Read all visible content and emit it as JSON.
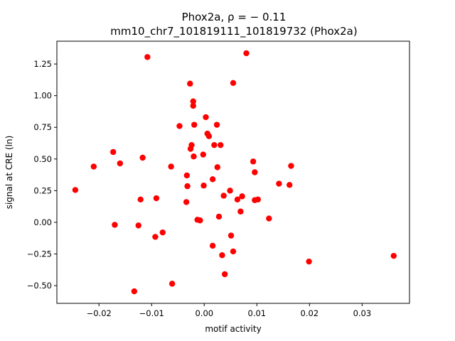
{
  "chart_data": {
    "type": "scatter",
    "title_line1": "Phox2a, ρ = − 0.11",
    "title_line2": "mm10_chr7_101819111_101819732 (Phox2a)",
    "xlabel": "motif activity",
    "ylabel": "signal at CRE (ln)",
    "xlim": [
      -0.028,
      0.039
    ],
    "ylim": [
      -0.64,
      1.43
    ],
    "grid": false,
    "marker_color": "#ff0000",
    "x_ticks": [
      {
        "value": -0.02,
        "label": "−0.02"
      },
      {
        "value": -0.01,
        "label": "−0.01"
      },
      {
        "value": 0.0,
        "label": "0.00"
      },
      {
        "value": 0.01,
        "label": "0.01"
      },
      {
        "value": 0.02,
        "label": "0.02"
      },
      {
        "value": 0.03,
        "label": "0.03"
      }
    ],
    "y_ticks": [
      {
        "value": -0.5,
        "label": "−0.50"
      },
      {
        "value": -0.25,
        "label": "−0.25"
      },
      {
        "value": 0.0,
        "label": "0.00"
      },
      {
        "value": 0.25,
        "label": "0.25"
      },
      {
        "value": 0.5,
        "label": "0.50"
      },
      {
        "value": 0.75,
        "label": "0.75"
      },
      {
        "value": 1.0,
        "label": "1.00"
      },
      {
        "value": 1.25,
        "label": "1.25"
      }
    ],
    "points": [
      {
        "x": -0.0245,
        "y": 0.255
      },
      {
        "x": -0.021,
        "y": 0.44
      },
      {
        "x": -0.0173,
        "y": 0.555
      },
      {
        "x": -0.017,
        "y": -0.02
      },
      {
        "x": -0.016,
        "y": 0.465
      },
      {
        "x": -0.0133,
        "y": -0.545
      },
      {
        "x": -0.0125,
        "y": -0.025
      },
      {
        "x": -0.0121,
        "y": 0.18
      },
      {
        "x": -0.0117,
        "y": 0.51
      },
      {
        "x": -0.0108,
        "y": 1.305
      },
      {
        "x": -0.0093,
        "y": -0.115
      },
      {
        "x": -0.0091,
        "y": 0.19
      },
      {
        "x": -0.0079,
        "y": -0.08
      },
      {
        "x": -0.0063,
        "y": 0.44
      },
      {
        "x": -0.0061,
        "y": -0.485
      },
      {
        "x": -0.0047,
        "y": 0.76
      },
      {
        "x": -0.0034,
        "y": 0.16
      },
      {
        "x": -0.0033,
        "y": 0.37
      },
      {
        "x": -0.0032,
        "y": 0.285
      },
      {
        "x": -0.0027,
        "y": 1.095
      },
      {
        "x": -0.0026,
        "y": 0.58
      },
      {
        "x": -0.0024,
        "y": 0.61
      },
      {
        "x": -0.0021,
        "y": 0.955
      },
      {
        "x": -0.0021,
        "y": 0.92
      },
      {
        "x": -0.002,
        "y": 0.52
      },
      {
        "x": -0.0019,
        "y": 0.77
      },
      {
        "x": -0.0013,
        "y": 0.02
      },
      {
        "x": -0.0008,
        "y": 0.015
      },
      {
        "x": -0.0002,
        "y": 0.535
      },
      {
        "x": -0.0001,
        "y": 0.29
      },
      {
        "x": 0.0003,
        "y": 0.83
      },
      {
        "x": 0.0006,
        "y": 0.7
      },
      {
        "x": 0.0009,
        "y": 0.68
      },
      {
        "x": 0.0016,
        "y": -0.185
      },
      {
        "x": 0.0016,
        "y": 0.34
      },
      {
        "x": 0.0019,
        "y": 0.61
      },
      {
        "x": 0.0024,
        "y": 0.77
      },
      {
        "x": 0.0025,
        "y": 0.435
      },
      {
        "x": 0.0028,
        "y": 0.045
      },
      {
        "x": 0.0031,
        "y": 0.61
      },
      {
        "x": 0.0034,
        "y": -0.26
      },
      {
        "x": 0.0037,
        "y": 0.21
      },
      {
        "x": 0.0039,
        "y": -0.41
      },
      {
        "x": 0.0049,
        "y": 0.25
      },
      {
        "x": 0.0051,
        "y": -0.105
      },
      {
        "x": 0.0055,
        "y": 1.1
      },
      {
        "x": 0.0055,
        "y": -0.23
      },
      {
        "x": 0.0063,
        "y": 0.18
      },
      {
        "x": 0.0069,
        "y": 0.085
      },
      {
        "x": 0.0072,
        "y": 0.205
      },
      {
        "x": 0.008,
        "y": 1.335
      },
      {
        "x": 0.0093,
        "y": 0.48
      },
      {
        "x": 0.0096,
        "y": 0.395
      },
      {
        "x": 0.0096,
        "y": 0.175
      },
      {
        "x": 0.0102,
        "y": 0.18
      },
      {
        "x": 0.0123,
        "y": 0.03
      },
      {
        "x": 0.0142,
        "y": 0.305
      },
      {
        "x": 0.0162,
        "y": 0.295
      },
      {
        "x": 0.0165,
        "y": 0.445
      },
      {
        "x": 0.0199,
        "y": -0.31
      },
      {
        "x": 0.036,
        "y": -0.265
      }
    ]
  }
}
